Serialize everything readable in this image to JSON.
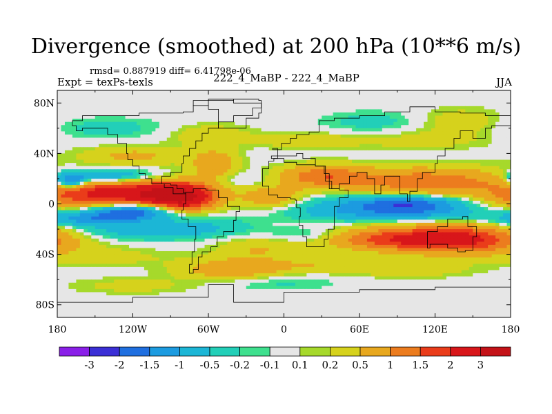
{
  "chart_data": {
    "type": "heatmap",
    "title": "Divergence (smoothed) at 200 hPa (10**6 m/s)",
    "subtitle_left": "Expt = texPs-texls",
    "stats": "rmsd= 0.887919 diff= 6.41798e-06",
    "subtitle_center": "222_4_MaBP - 222_4_MaBP",
    "subtitle_right": "JJA",
    "x_ticks": [
      {
        "value": -180,
        "label": "180"
      },
      {
        "value": -120,
        "label": "120W"
      },
      {
        "value": -60,
        "label": "60W"
      },
      {
        "value": 0,
        "label": "0"
      },
      {
        "value": 60,
        "label": "60E"
      },
      {
        "value": 120,
        "label": "120E"
      },
      {
        "value": 180,
        "label": "180"
      }
    ],
    "y_ticks": [
      {
        "value": 80,
        "label": "80N"
      },
      {
        "value": 40,
        "label": "40N"
      },
      {
        "value": 0,
        "label": "0"
      },
      {
        "value": -40,
        "label": "40S"
      },
      {
        "value": -80,
        "label": "80S"
      }
    ],
    "xlim": [
      -180,
      180
    ],
    "ylim": [
      -90,
      90
    ],
    "levels": [
      -3,
      -2,
      -1.5,
      -1,
      -0.5,
      -0.2,
      -0.1,
      0.1,
      0.2,
      0.5,
      1,
      1.5,
      2,
      3
    ],
    "level_labels": [
      "-3",
      "-2",
      "-1.5",
      "-1",
      "-0.5",
      "-0.2",
      "-0.1",
      "0.1",
      "0.2",
      "0.5",
      "1",
      "1.5",
      "2",
      "3"
    ],
    "colors": [
      "#8a1fe8",
      "#3b2fd6",
      "#1f6fe0",
      "#1c9be0",
      "#1cb6d6",
      "#22cfb8",
      "#3ee08e",
      "#e6e6e6",
      "#a6d92b",
      "#d6d21c",
      "#e8a81e",
      "#ec7c1e",
      "#ea3c1a",
      "#d8161a",
      "#c41218"
    ],
    "features": [
      {
        "lon": -150,
        "lat": 8,
        "w": 75,
        "h": 10,
        "v": 2.0
      },
      {
        "lon": -80,
        "lat": 5,
        "w": 30,
        "h": 10,
        "v": 2.4
      },
      {
        "lon": -100,
        "lat": 8,
        "w": 40,
        "h": 8,
        "v": 1.5
      },
      {
        "lon": -120,
        "lat": -6,
        "w": 40,
        "h": 6,
        "v": -2.0
      },
      {
        "lon": -170,
        "lat": 18,
        "w": 15,
        "h": 6,
        "v": -2.0
      },
      {
        "lon": -140,
        "lat": 22,
        "w": 40,
        "h": 5,
        "v": -1.2
      },
      {
        "lon": -155,
        "lat": -12,
        "w": 45,
        "h": 5,
        "v": -1.2
      },
      {
        "lon": -120,
        "lat": -22,
        "w": 70,
        "h": 6,
        "v": -0.6
      },
      {
        "lon": -70,
        "lat": -18,
        "w": 50,
        "h": 7,
        "v": -0.5
      },
      {
        "lon": 100,
        "lat": 0,
        "w": 55,
        "h": 6,
        "v": -1.9
      },
      {
        "lon": 95,
        "lat": -8,
        "w": 80,
        "h": 5,
        "v": -0.9
      },
      {
        "lon": 40,
        "lat": -2,
        "w": 60,
        "h": 8,
        "v": -0.5
      },
      {
        "lon": 140,
        "lat": -28,
        "w": 60,
        "h": 10,
        "v": 2.2
      },
      {
        "lon": 80,
        "lat": -28,
        "w": 60,
        "h": 8,
        "v": 1.4
      },
      {
        "lon": 160,
        "lat": 10,
        "w": 30,
        "h": 8,
        "v": -0.5
      },
      {
        "lon": 110,
        "lat": 18,
        "w": 80,
        "h": 10,
        "v": 1.3
      },
      {
        "lon": 30,
        "lat": 22,
        "w": 40,
        "h": 8,
        "v": 1.2
      },
      {
        "lon": -10,
        "lat": 5,
        "w": 30,
        "h": 8,
        "v": 0.9
      },
      {
        "lon": -55,
        "lat": 30,
        "w": 22,
        "h": 12,
        "v": 0.9
      },
      {
        "lon": -120,
        "lat": 38,
        "w": 50,
        "h": 7,
        "v": 0.6
      },
      {
        "lon": -60,
        "lat": 55,
        "w": 40,
        "h": 8,
        "v": 0.4
      },
      {
        "lon": 20,
        "lat": 50,
        "w": 50,
        "h": 6,
        "v": 0.4
      },
      {
        "lon": 110,
        "lat": 50,
        "w": 60,
        "h": 7,
        "v": 0.3
      },
      {
        "lon": -140,
        "lat": 60,
        "w": 60,
        "h": 8,
        "v": -0.3
      },
      {
        "lon": 70,
        "lat": 65,
        "w": 50,
        "h": 8,
        "v": -0.3
      },
      {
        "lon": 140,
        "lat": 65,
        "w": 40,
        "h": 10,
        "v": 0.4
      },
      {
        "lon": -20,
        "lat": -35,
        "w": 40,
        "h": 8,
        "v": 0.5
      },
      {
        "lon": -40,
        "lat": -52,
        "w": 50,
        "h": 8,
        "v": 0.9
      },
      {
        "lon": 30,
        "lat": -48,
        "w": 50,
        "h": 6,
        "v": 0.4
      },
      {
        "lon": -140,
        "lat": -42,
        "w": 60,
        "h": 7,
        "v": 0.3
      },
      {
        "lon": 100,
        "lat": -52,
        "w": 60,
        "h": 6,
        "v": 0.4
      },
      {
        "lon": -10,
        "lat": -62,
        "w": 60,
        "h": 6,
        "v": -0.3
      },
      {
        "lon": -120,
        "lat": -65,
        "w": 60,
        "h": 6,
        "v": 0.3
      },
      {
        "lon": 20,
        "lat": -25,
        "w": 40,
        "h": 6,
        "v": -0.4
      },
      {
        "lon": -40,
        "lat": 20,
        "w": 30,
        "h": 6,
        "v": -0.3
      }
    ],
    "continents": [
      [
        [
          -168,
          66
        ],
        [
          -160,
          70
        ],
        [
          -140,
          70
        ],
        [
          -128,
          70
        ],
        [
          -115,
          72
        ],
        [
          -95,
          72
        ],
        [
          -80,
          73
        ],
        [
          -72,
          78
        ],
        [
          -60,
          82
        ],
        [
          -40,
          83
        ],
        [
          -20,
          82
        ],
        [
          -18,
          76
        ],
        [
          -25,
          70
        ],
        [
          -40,
          65
        ],
        [
          -52,
          60
        ],
        [
          -60,
          56
        ],
        [
          -65,
          50
        ],
        [
          -70,
          44
        ],
        [
          -75,
          38
        ],
        [
          -80,
          32
        ],
        [
          -81,
          25
        ],
        [
          -90,
          22
        ],
        [
          -97,
          22
        ],
        [
          -97,
          16
        ],
        [
          -90,
          15
        ],
        [
          -85,
          12
        ],
        [
          -80,
          9
        ],
        [
          -78,
          8
        ],
        [
          -82,
          8
        ],
        [
          -88,
          13
        ],
        [
          -95,
          16
        ],
        [
          -105,
          20
        ],
        [
          -110,
          24
        ],
        [
          -115,
          30
        ],
        [
          -120,
          35
        ],
        [
          -124,
          40
        ],
        [
          -125,
          48
        ],
        [
          -132,
          55
        ],
        [
          -140,
          60
        ],
        [
          -150,
          60
        ],
        [
          -160,
          58
        ],
        [
          -165,
          62
        ],
        [
          -168,
          66
        ]
      ],
      [
        [
          -78,
          9
        ],
        [
          -72,
          12
        ],
        [
          -62,
          11
        ],
        [
          -52,
          5
        ],
        [
          -45,
          -2
        ],
        [
          -35,
          -6
        ],
        [
          -38,
          -13
        ],
        [
          -40,
          -22
        ],
        [
          -48,
          -26
        ],
        [
          -53,
          -34
        ],
        [
          -58,
          -38
        ],
        [
          -65,
          -42
        ],
        [
          -68,
          -52
        ],
        [
          -72,
          -55
        ],
        [
          -75,
          -48
        ],
        [
          -73,
          -38
        ],
        [
          -71,
          -28
        ],
        [
          -70,
          -18
        ],
        [
          -76,
          -12
        ],
        [
          -81,
          -5
        ],
        [
          -80,
          0
        ],
        [
          -78,
          9
        ]
      ],
      [
        [
          -10,
          36
        ],
        [
          -5,
          44
        ],
        [
          -9,
          43
        ],
        [
          -2,
          48
        ],
        [
          5,
          52
        ],
        [
          10,
          55
        ],
        [
          20,
          57
        ],
        [
          28,
          66
        ],
        [
          40,
          68
        ],
        [
          60,
          70
        ],
        [
          80,
          73
        ],
        [
          100,
          77
        ],
        [
          120,
          73
        ],
        [
          140,
          72
        ],
        [
          160,
          70
        ],
        [
          180,
          68
        ],
        [
          180,
          62
        ],
        [
          165,
          60
        ],
        [
          160,
          52
        ],
        [
          150,
          58
        ],
        [
          140,
          52
        ],
        [
          135,
          44
        ],
        [
          128,
          38
        ],
        [
          122,
          32
        ],
        [
          120,
          25
        ],
        [
          110,
          20
        ],
        [
          106,
          10
        ],
        [
          100,
          2
        ],
        [
          98,
          8
        ],
        [
          92,
          22
        ],
        [
          80,
          15
        ],
        [
          77,
          8
        ],
        [
          72,
          20
        ],
        [
          66,
          25
        ],
        [
          58,
          22
        ],
        [
          52,
          16
        ],
        [
          44,
          12
        ],
        [
          36,
          24
        ],
        [
          32,
          30
        ],
        [
          25,
          36
        ],
        [
          15,
          40
        ],
        [
          10,
          38
        ],
        [
          0,
          38
        ],
        [
          -10,
          36
        ]
      ],
      [
        [
          -17,
          21
        ],
        [
          -17,
          14
        ],
        [
          -12,
          7
        ],
        [
          -5,
          5
        ],
        [
          5,
          4
        ],
        [
          9,
          3
        ],
        [
          10,
          -3
        ],
        [
          13,
          -10
        ],
        [
          12,
          -17
        ],
        [
          15,
          -26
        ],
        [
          18,
          -34
        ],
        [
          25,
          -34
        ],
        [
          32,
          -28
        ],
        [
          35,
          -20
        ],
        [
          40,
          -12
        ],
        [
          40,
          -2
        ],
        [
          44,
          5
        ],
        [
          51,
          11
        ],
        [
          44,
          12
        ],
        [
          38,
          18
        ],
        [
          33,
          30
        ],
        [
          25,
          31
        ],
        [
          10,
          33
        ],
        [
          0,
          36
        ],
        [
          -8,
          34
        ],
        [
          -12,
          28
        ],
        [
          -17,
          21
        ]
      ],
      [
        [
          114,
          -22
        ],
        [
          122,
          -18
        ],
        [
          130,
          -12
        ],
        [
          137,
          -12
        ],
        [
          142,
          -10
        ],
        [
          146,
          -18
        ],
        [
          153,
          -26
        ],
        [
          150,
          -37
        ],
        [
          144,
          -38
        ],
        [
          138,
          -35
        ],
        [
          130,
          -32
        ],
        [
          116,
          -35
        ],
        [
          114,
          -26
        ],
        [
          114,
          -22
        ]
      ],
      [
        [
          -52,
          60
        ],
        [
          -44,
          60
        ],
        [
          -30,
          68
        ],
        [
          -20,
          72
        ],
        [
          -18,
          80
        ],
        [
          -40,
          83
        ],
        [
          -60,
          82
        ],
        [
          -72,
          78
        ],
        [
          -60,
          75
        ],
        [
          -52,
          68
        ],
        [
          -52,
          60
        ]
      ],
      [
        [
          -180,
          -78
        ],
        [
          -120,
          -74
        ],
        [
          -60,
          -64
        ],
        [
          -40,
          -78
        ],
        [
          0,
          -70
        ],
        [
          60,
          -68
        ],
        [
          120,
          -66
        ],
        [
          180,
          -72
        ],
        [
          180,
          -90
        ],
        [
          -180,
          -90
        ],
        [
          -180,
          -78
        ]
      ]
    ]
  }
}
